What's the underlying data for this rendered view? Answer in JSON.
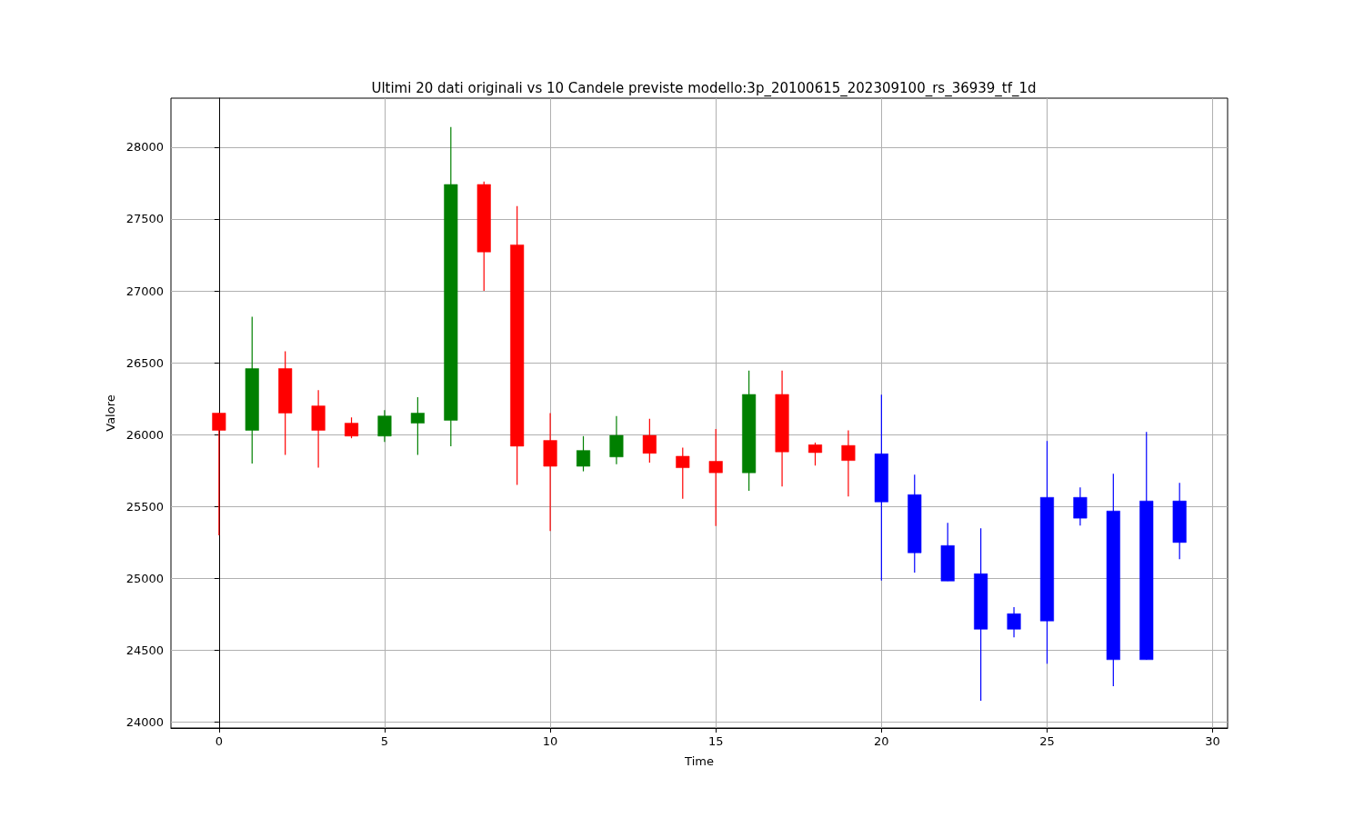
{
  "chart_data": {
    "type": "candlestick",
    "title": "Ultimi 20 dati originali vs 10 Candele previste modello:3p_20100615_202309100_rs_36939_tf_1d",
    "xlabel": "Time",
    "ylabel": "Valore",
    "x": [
      0,
      1,
      2,
      3,
      4,
      5,
      6,
      7,
      8,
      9,
      10,
      11,
      12,
      13,
      14,
      15,
      16,
      17,
      18,
      19,
      20,
      21,
      22,
      23,
      24,
      25,
      26,
      27,
      28,
      29
    ],
    "ohlc": [
      [
        26150,
        26150,
        25300,
        26030
      ],
      [
        26030,
        26820,
        25800,
        26460
      ],
      [
        26460,
        26580,
        25860,
        26150
      ],
      [
        26200,
        26310,
        25770,
        26030
      ],
      [
        26080,
        26120,
        25975,
        25990
      ],
      [
        25990,
        26170,
        25950,
        26130
      ],
      [
        26080,
        26260,
        25860,
        26150
      ],
      [
        26100,
        28140,
        25920,
        27740
      ],
      [
        27740,
        27760,
        27000,
        27270
      ],
      [
        27320,
        27590,
        25650,
        25920
      ],
      [
        25960,
        26150,
        25330,
        25780
      ],
      [
        25780,
        25990,
        25745,
        25890
      ],
      [
        25845,
        26130,
        25795,
        25995
      ],
      [
        25995,
        26110,
        25805,
        25870
      ],
      [
        25850,
        25910,
        25555,
        25770
      ],
      [
        25815,
        26040,
        25365,
        25735
      ],
      [
        25735,
        26445,
        25610,
        26280
      ],
      [
        26280,
        26445,
        25640,
        25880
      ],
      [
        25930,
        25945,
        25785,
        25875
      ],
      [
        25925,
        26030,
        25570,
        25820
      ],
      [
        25867,
        26278,
        24985,
        25532
      ],
      [
        25583,
        25722,
        25040,
        25178
      ],
      [
        25229,
        25387,
        24982,
        24982
      ],
      [
        25033,
        25349,
        24150,
        24647
      ],
      [
        24755,
        24800,
        24590,
        24647
      ],
      [
        24704,
        25956,
        24407,
        25564
      ],
      [
        25564,
        25633,
        25368,
        25419
      ],
      [
        25469,
        25728,
        24251,
        24435
      ],
      [
        24435,
        26019,
        24435,
        25539
      ],
      [
        25539,
        25665,
        25134,
        25250
      ]
    ],
    "colors": [
      "#ff0000",
      "#008000",
      "#ff0000",
      "#ff0000",
      "#ff0000",
      "#008000",
      "#008000",
      "#008000",
      "#ff0000",
      "#ff0000",
      "#ff0000",
      "#008000",
      "#008000",
      "#ff0000",
      "#ff0000",
      "#ff0000",
      "#008000",
      "#ff0000",
      "#ff0000",
      "#ff0000",
      "#0000ff",
      "#0000ff",
      "#0000ff",
      "#0000ff",
      "#0000ff",
      "#0000ff",
      "#0000ff",
      "#0000ff",
      "#0000ff",
      "#0000ff"
    ],
    "xlim": [
      -1.45,
      30.45
    ],
    "ylim": [
      23960,
      28340
    ],
    "xticks": [
      0,
      5,
      10,
      15,
      20,
      25,
      30
    ],
    "yticks": [
      24000,
      24500,
      25000,
      25500,
      26000,
      26500,
      27000,
      27500,
      28000
    ],
    "grid": true
  }
}
